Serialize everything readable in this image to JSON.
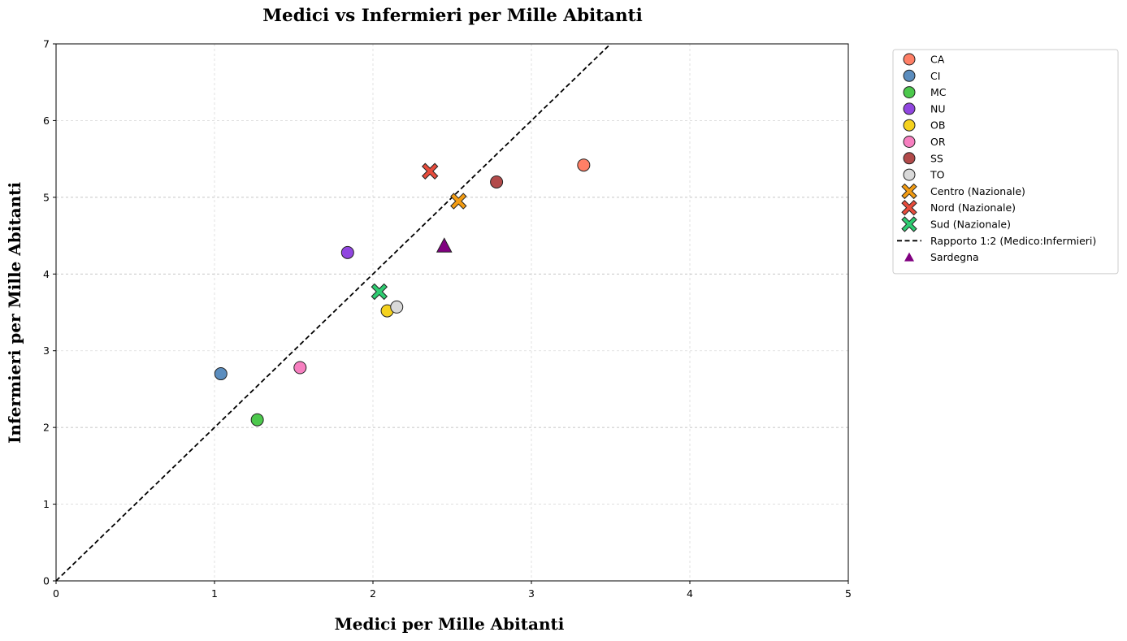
{
  "chart_data": {
    "type": "scatter",
    "title": "Medici vs Infermieri per Mille Abitanti",
    "xlabel": "Medici per Mille Abitanti",
    "ylabel": "Infermieri per Mille Abitanti",
    "xlim": [
      0,
      5
    ],
    "ylim": [
      0,
      7
    ],
    "x_ticks": [
      0,
      1,
      2,
      3,
      4,
      5
    ],
    "y_ticks": [
      0,
      1,
      2,
      3,
      4,
      5,
      6,
      7
    ],
    "grid": true,
    "legend_position": "outside-right-top",
    "series": [
      {
        "name": "CA",
        "marker": "circle",
        "color": "#FF7F66",
        "x": 3.33,
        "y": 5.42
      },
      {
        "name": "CI",
        "marker": "circle",
        "color": "#5B8DBE",
        "x": 1.04,
        "y": 2.7
      },
      {
        "name": "MC",
        "marker": "circle",
        "color": "#4CC84C",
        "x": 1.27,
        "y": 2.1
      },
      {
        "name": "NU",
        "marker": "circle",
        "color": "#9146E0",
        "x": 1.84,
        "y": 4.28
      },
      {
        "name": "OB",
        "marker": "circle",
        "color": "#F5D21E",
        "x": 2.09,
        "y": 3.52
      },
      {
        "name": "OR",
        "marker": "circle",
        "color": "#F77FC0",
        "x": 1.54,
        "y": 2.78
      },
      {
        "name": "SS",
        "marker": "circle",
        "color": "#B24A4A",
        "x": 2.78,
        "y": 5.2
      },
      {
        "name": "TO",
        "marker": "circle",
        "color": "#D9D9D9",
        "x": 2.15,
        "y": 3.57
      },
      {
        "name": "Centro (Nazionale)",
        "marker": "x",
        "color": "#F39C12",
        "x": 2.54,
        "y": 4.95
      },
      {
        "name": "Nord (Nazionale)",
        "marker": "x",
        "color": "#E74C3C",
        "x": 2.36,
        "y": 5.34
      },
      {
        "name": "Sud (Nazionale)",
        "marker": "x",
        "color": "#2ECC71",
        "x": 2.04,
        "y": 3.77
      }
    ],
    "reference_line": {
      "name": "Rapporto 1:2 (Medico:Infermieri)",
      "slope": 2,
      "intercept": 0,
      "style": "dashed",
      "color": "#000000"
    },
    "highlight": {
      "name": "Sardegna",
      "marker": "triangle",
      "color": "#800080",
      "x": 2.45,
      "y": 4.36
    }
  }
}
